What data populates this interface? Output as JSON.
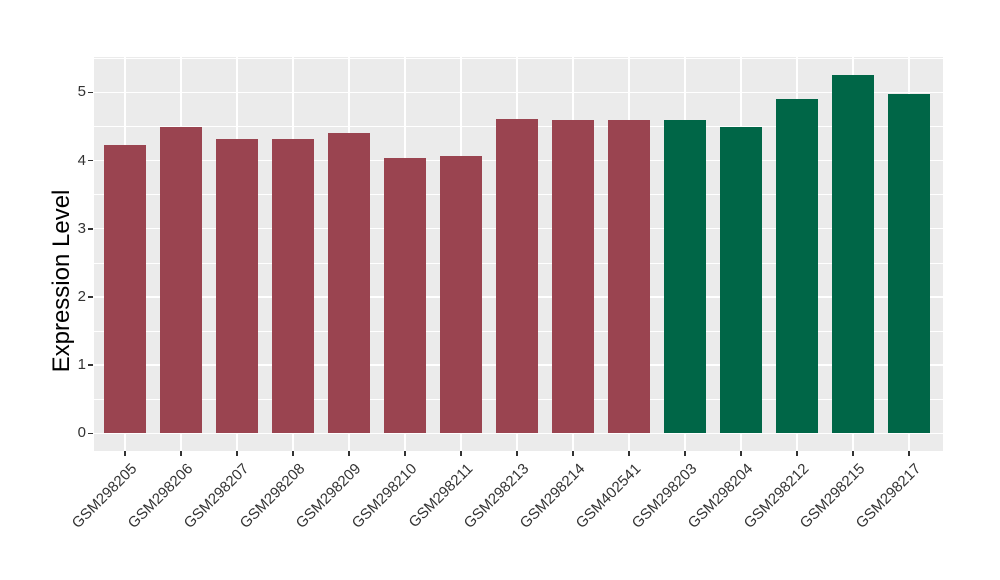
{
  "figure": {
    "background": "#FFFFFF",
    "panel_background": "#EBEBEB",
    "grid_color": "#FFFFFF",
    "axis_text_color": "#333333",
    "axis_title_color": "#000000"
  },
  "chart_data": {
    "type": "bar",
    "ylabel": "Expression Level",
    "xlabel": "",
    "yticks": [
      0,
      1,
      2,
      3,
      4,
      5
    ],
    "minor_yticks": [
      0.5,
      1.5,
      2.5,
      3.5,
      4.5,
      5.5
    ],
    "ylim": [
      -0.26,
      5.52
    ],
    "grid": true,
    "legend": "none",
    "categories": [
      "GSM298205",
      "GSM298206",
      "GSM298207",
      "GSM298208",
      "GSM298209",
      "GSM298210",
      "GSM298211",
      "GSM298213",
      "GSM298214",
      "GSM402541",
      "GSM298203",
      "GSM298204",
      "GSM298212",
      "GSM298215",
      "GSM298217"
    ],
    "values": [
      4.23,
      4.49,
      4.31,
      4.31,
      4.4,
      4.04,
      4.07,
      4.61,
      4.59,
      4.59,
      4.59,
      4.49,
      4.91,
      5.26,
      4.98
    ],
    "bar_colors": [
      "#9A4450",
      "#9A4450",
      "#9A4450",
      "#9A4450",
      "#9A4450",
      "#9A4450",
      "#9A4450",
      "#9A4450",
      "#9A4450",
      "#9A4450",
      "#006647",
      "#006647",
      "#006647",
      "#006647",
      "#006647"
    ],
    "group_colors": {
      "maroon_group": "#9A4450",
      "green_group": "#006647"
    }
  }
}
